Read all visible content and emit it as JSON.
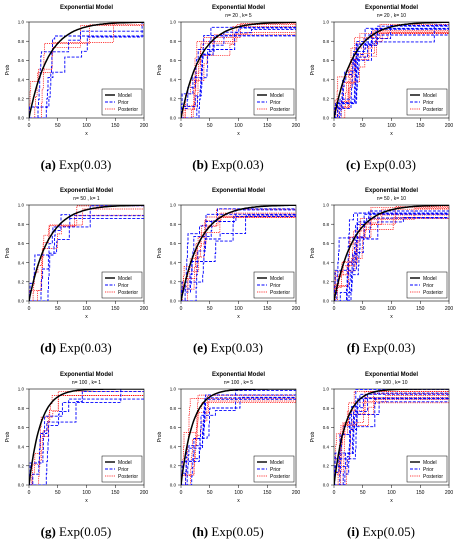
{
  "common": {
    "title": "Exponential Model",
    "xlabel": "x",
    "ylabel": "Prob",
    "xticks": [
      "0",
      "50",
      "100",
      "150",
      "200"
    ],
    "yticks": [
      "0.0",
      "0.2",
      "0.4",
      "0.6",
      "0.8",
      "1.0"
    ],
    "legend": [
      "Model",
      "Prior",
      "Posterior"
    ],
    "colors": {
      "model": "#000000",
      "prior": "#0000ff",
      "posterior": "#ff0000"
    }
  },
  "chart_data": [
    {
      "id": "a",
      "type": "line",
      "subtitle": "",
      "caption_label": "(a)",
      "caption_text": "Exp(0.03)",
      "rate": 0.03,
      "xlim": [
        0,
        200
      ],
      "ylim": [
        0,
        1
      ],
      "legend_position": "bottom-right",
      "k": 1
    },
    {
      "id": "b",
      "type": "line",
      "subtitle": "n= 20 , k= 5",
      "caption_label": "(b)",
      "caption_text": "Exp(0.03)",
      "rate": 0.03,
      "xlim": [
        0,
        200
      ],
      "ylim": [
        0,
        1
      ],
      "legend_position": "bottom-right",
      "k": 5
    },
    {
      "id": "c",
      "type": "line",
      "subtitle": "n= 20 , k= 10",
      "caption_label": "(c)",
      "caption_text": "Exp(0.03)",
      "rate": 0.03,
      "xlim": [
        0,
        200
      ],
      "ylim": [
        0,
        1
      ],
      "legend_position": "bottom-right",
      "k": 10
    },
    {
      "id": "d",
      "type": "line",
      "subtitle": "n= 50 , k= 1",
      "caption_label": "(d)",
      "caption_text": "Exp(0.03)",
      "rate": 0.03,
      "xlim": [
        0,
        200
      ],
      "ylim": [
        0,
        1
      ],
      "legend_position": "bottom-right",
      "k": 1
    },
    {
      "id": "e",
      "type": "line",
      "subtitle": "",
      "caption_label": "(e)",
      "caption_text": "Exp(0.03)",
      "rate": 0.03,
      "xlim": [
        0,
        200
      ],
      "ylim": [
        0,
        1
      ],
      "legend_position": "bottom-right",
      "k": 5
    },
    {
      "id": "f",
      "type": "line",
      "subtitle": "n= 50 , k= 10",
      "caption_label": "(f)",
      "caption_text": "Exp(0.03)",
      "rate": 0.03,
      "xlim": [
        0,
        200
      ],
      "ylim": [
        0,
        1
      ],
      "legend_position": "bottom-right",
      "k": 10
    },
    {
      "id": "g",
      "type": "line",
      "subtitle": "n= 100 , k= 1",
      "caption_label": "(g)",
      "caption_text": "Exp(0.05)",
      "rate": 0.05,
      "xlim": [
        0,
        200
      ],
      "ylim": [
        0,
        1
      ],
      "legend_position": "bottom-right",
      "k": 1
    },
    {
      "id": "h",
      "type": "line",
      "subtitle": "n= 100 , k= 5",
      "caption_label": "(h)",
      "caption_text": "Exp(0.05)",
      "rate": 0.05,
      "xlim": [
        0,
        200
      ],
      "ylim": [
        0,
        1
      ],
      "legend_position": "bottom-right",
      "k": 5
    },
    {
      "id": "i",
      "type": "line",
      "subtitle": "n= 100 , k= 10",
      "caption_label": "(i)",
      "caption_text": "Exp(0.05)",
      "rate": 0.05,
      "xlim": [
        0,
        200
      ],
      "ylim": [
        0,
        1
      ],
      "legend_position": "bottom-right",
      "k": 10
    }
  ]
}
